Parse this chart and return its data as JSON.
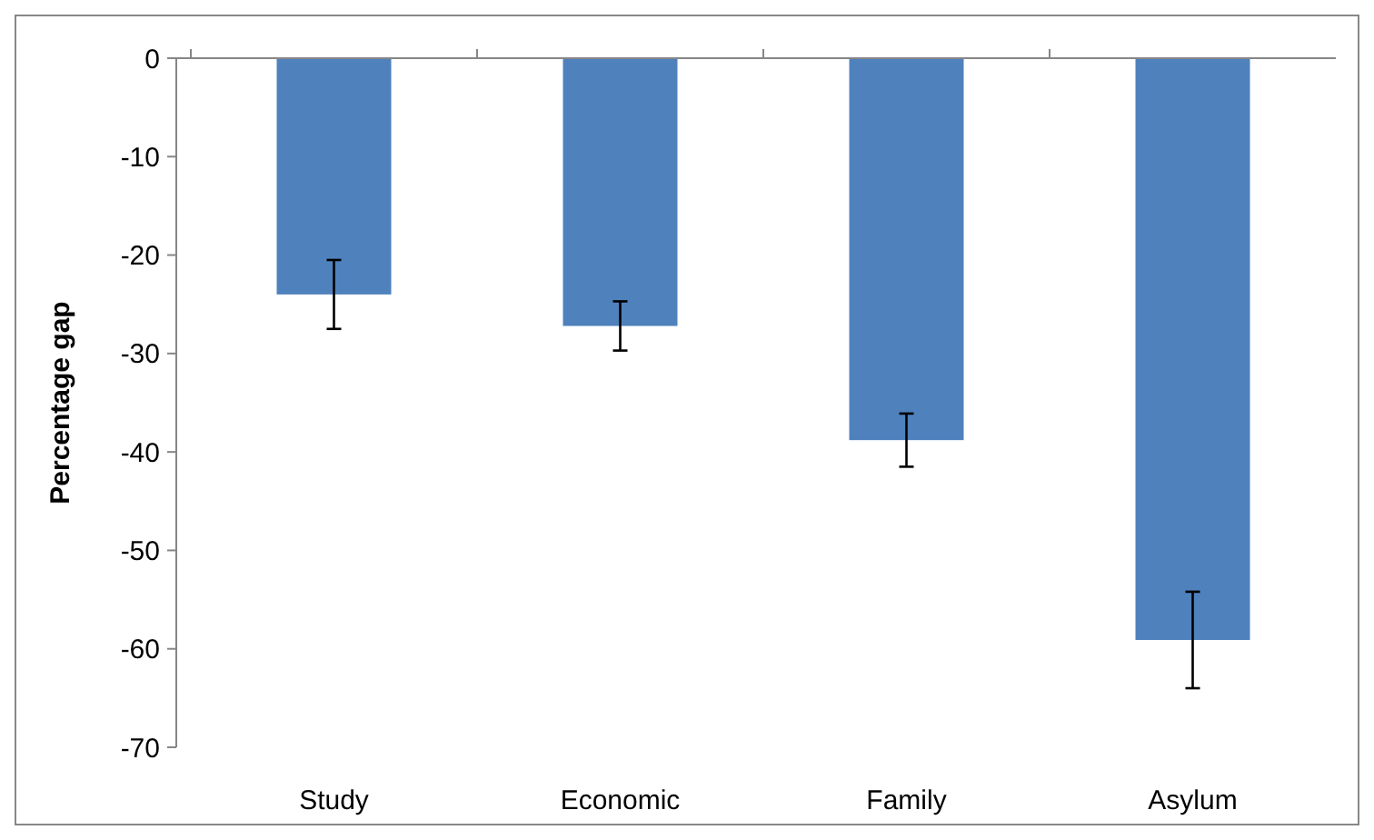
{
  "chart_data": {
    "type": "bar",
    "ylabel": "Percentage gap",
    "categories": [
      "Study",
      "Economic",
      "Family",
      "Asylum"
    ],
    "values": [
      -24.0,
      -27.2,
      -38.8,
      -59.1
    ],
    "errors": [
      3.5,
      2.5,
      2.7,
      4.9
    ],
    "color": "#4f81bd",
    "ylim": [
      -70,
      0
    ],
    "yticks": [
      -70,
      -60,
      -50,
      -40,
      -30,
      -20,
      -10,
      0
    ],
    "grid": false
  }
}
